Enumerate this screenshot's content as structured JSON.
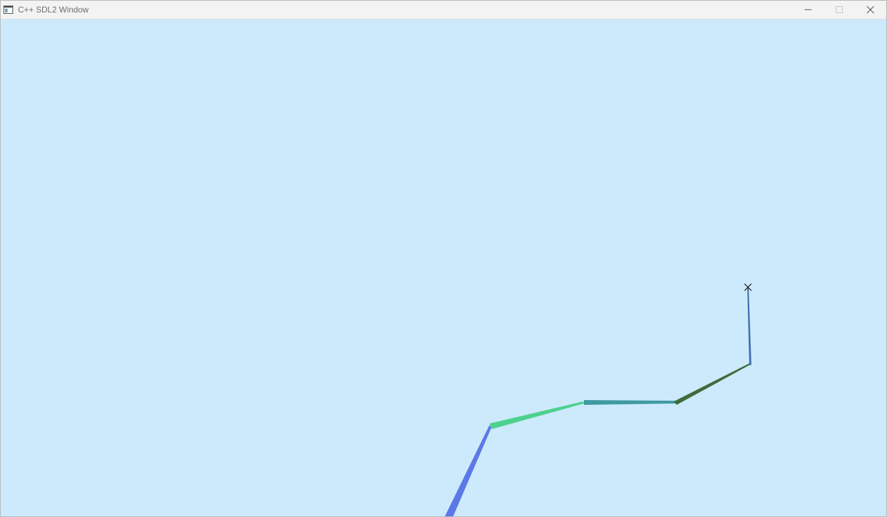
{
  "window": {
    "title": "C++ SDL2 Window",
    "app_icon": "sdl-window-icon",
    "controls": {
      "minimize_icon": "minimize-icon",
      "maximize_icon": "maximize-icon",
      "close_icon": "close-icon"
    }
  },
  "scene": {
    "background": "#cdeafd",
    "segment_colors": [
      "#5b79e6",
      "#4ed18e",
      "#3f9aa2",
      "#3e6d3c",
      "#3f6fb0"
    ],
    "target_marker_icon": "crosshair-x-icon"
  }
}
